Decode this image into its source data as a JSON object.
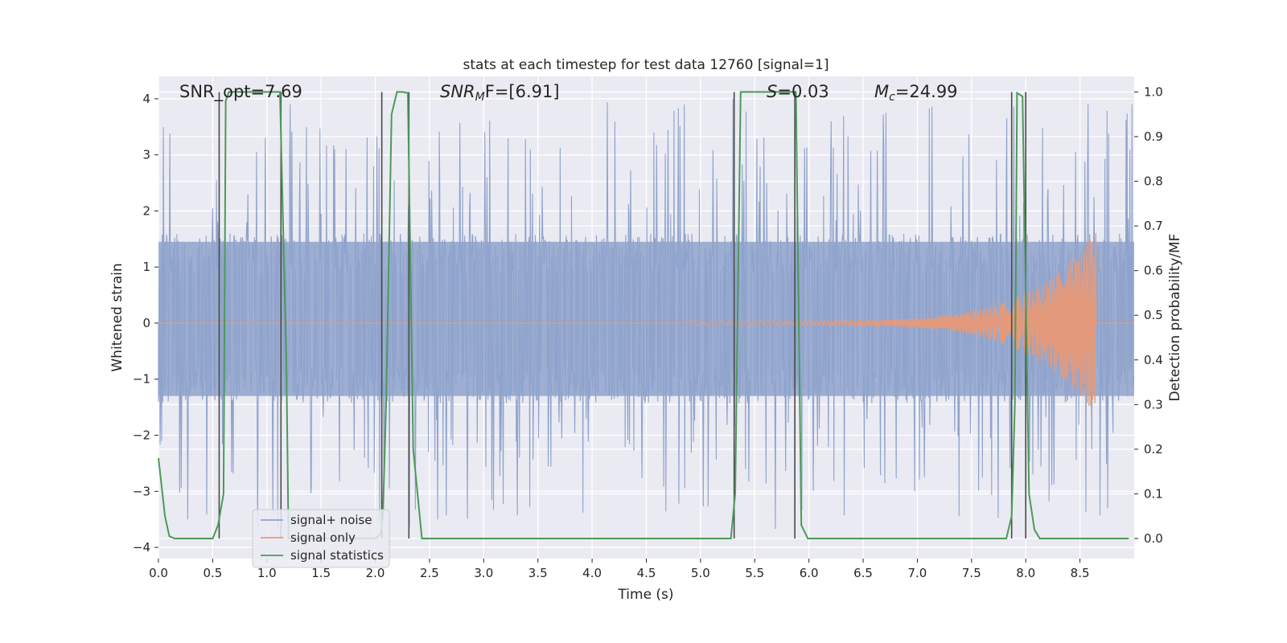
{
  "chart_data": {
    "type": "line",
    "title": "stats at each timestep for test data 12760 [signal=1]",
    "xlabel": "Time (s)",
    "ylabel_left": "Whitened strain",
    "ylabel_right": "Detection probability/MF",
    "xlim": [
      0.0,
      9.0
    ],
    "ylim_left": [
      -4.2,
      4.4
    ],
    "ylim_right": [
      -0.045,
      1.035
    ],
    "x_ticks": [
      "0.0",
      "0.5",
      "1.0",
      "1.5",
      "2.0",
      "2.5",
      "3.0",
      "3.5",
      "4.0",
      "4.5",
      "5.0",
      "5.5",
      "6.0",
      "6.5",
      "7.0",
      "7.5",
      "8.0",
      "8.5"
    ],
    "y_left_ticks": [
      "4",
      "3",
      "2",
      "1",
      "0",
      "−1",
      "−2",
      "−3",
      "−4"
    ],
    "y_right_ticks": [
      "1.0",
      "0.9",
      "0.8",
      "0.7",
      "0.6",
      "0.5",
      "0.4",
      "0.3",
      "0.2",
      "0.1",
      "0.0"
    ],
    "grid": true,
    "legend_position": "lower-left",
    "annotations": {
      "snr_opt": "SNR_opt=7.69",
      "snr_mf_italic": "SNR",
      "snr_mf_sub": "M",
      "snr_mf_rest": "F=[6.91]",
      "s_italic": "S",
      "s_rest": "=0.03",
      "mc_italic": "M",
      "mc_sub": "c",
      "mc_rest": "=24.99"
    },
    "series": [
      {
        "name": "signal+ noise",
        "color": "#8fa3cc",
        "description_axis": "left",
        "noise_band_y": [
          -1.3,
          1.45
        ],
        "spike_range_y": [
          -3.7,
          4.0
        ]
      },
      {
        "name": "signal only",
        "color": "#e39a7c",
        "axis": "left",
        "chirp_start_x": 4.9,
        "chirp_end_x": 8.65,
        "peak_amplitude": 1.6
      },
      {
        "name": "signal statistics",
        "color": "#4c9a59",
        "axis": "right",
        "x": [
          0.0,
          0.06,
          0.1,
          0.15,
          0.5,
          0.55,
          0.6,
          0.62,
          0.65,
          1.12,
          1.18,
          1.2,
          2.0,
          2.05,
          2.07,
          2.1,
          2.15,
          2.2,
          2.25,
          2.3,
          2.35,
          2.43,
          2.48,
          5.28,
          5.32,
          5.37,
          5.88,
          5.93,
          5.99,
          6.05,
          7.82,
          7.87,
          7.9,
          7.92,
          7.97,
          8.03,
          8.08,
          8.13,
          8.18,
          8.95
        ],
        "y": [
          0.18,
          0.05,
          0.005,
          0.0,
          0.0,
          0.03,
          0.1,
          0.98,
          1.0,
          1.0,
          0.4,
          0.0,
          0.0,
          0.01,
          0.05,
          0.3,
          0.95,
          1.0,
          1.0,
          0.998,
          0.2,
          0.0,
          0.0,
          0.0,
          0.1,
          1.0,
          1.0,
          0.03,
          0.0,
          0.0,
          0.0,
          0.05,
          0.3,
          0.998,
          0.99,
          0.1,
          0.02,
          0.0,
          0.0,
          0.0
        ]
      }
    ],
    "vertical_markers_x": [
      0.56,
      1.13,
      2.06,
      2.31,
      5.31,
      5.87,
      7.87,
      8.0
    ]
  }
}
